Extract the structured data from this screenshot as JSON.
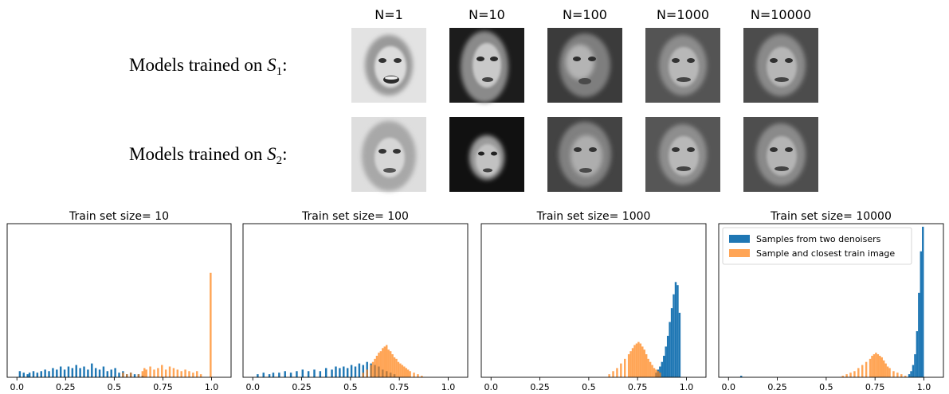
{
  "face_grid": {
    "column_titles": [
      "N=1",
      "N=10",
      "N=100",
      "N=1000",
      "N=10000"
    ],
    "rows": [
      {
        "label_prefix": "Models trained on ",
        "label_var": "S",
        "label_sub": "1",
        "label_suffix": ":"
      },
      {
        "label_prefix": "Models trained on ",
        "label_var": "S",
        "label_sub": "2",
        "label_suffix": ":"
      }
    ]
  },
  "colors": {
    "blue": "#1f77b4",
    "orange": "#ff7f0e"
  },
  "chart_data": [
    {
      "type": "bar",
      "title": "Train set size= 10",
      "xlim": [
        -0.05,
        1.1
      ],
      "xticks": [
        0.0,
        0.25,
        0.5,
        0.75,
        1.0
      ],
      "xtick_labels": [
        "0.0",
        "0.25",
        "0.5",
        "0.75",
        "1.0"
      ],
      "bin_width": 0.01,
      "ylim": [
        0,
        1.0
      ],
      "yticks": [],
      "series": [
        {
          "values": [
            [
              0.01,
              0.04
            ],
            [
              0.03,
              0.03
            ],
            [
              0.05,
              0.02
            ],
            [
              0.06,
              0.03
            ],
            [
              0.08,
              0.04
            ],
            [
              0.1,
              0.03
            ],
            [
              0.12,
              0.04
            ],
            [
              0.14,
              0.05
            ],
            [
              0.16,
              0.04
            ],
            [
              0.18,
              0.06
            ],
            [
              0.2,
              0.05
            ],
            [
              0.22,
              0.07
            ],
            [
              0.24,
              0.05
            ],
            [
              0.26,
              0.07
            ],
            [
              0.28,
              0.06
            ],
            [
              0.3,
              0.08
            ],
            [
              0.32,
              0.06
            ],
            [
              0.34,
              0.07
            ],
            [
              0.36,
              0.05
            ],
            [
              0.38,
              0.09
            ],
            [
              0.4,
              0.06
            ],
            [
              0.42,
              0.05
            ],
            [
              0.44,
              0.07
            ],
            [
              0.46,
              0.04
            ],
            [
              0.48,
              0.05
            ],
            [
              0.5,
              0.06
            ],
            [
              0.52,
              0.03
            ],
            [
              0.54,
              0.04
            ],
            [
              0.56,
              0.02
            ],
            [
              0.58,
              0.03
            ],
            [
              0.6,
              0.02
            ],
            [
              0.62,
              0.02
            ],
            [
              0.64,
              0.01
            ]
          ]
        },
        {
          "values": [
            [
              0.54,
              0.03
            ],
            [
              0.56,
              0.02
            ],
            [
              0.58,
              0.03
            ],
            [
              0.62,
              0.02
            ],
            [
              0.64,
              0.04
            ],
            [
              0.65,
              0.06
            ],
            [
              0.66,
              0.05
            ],
            [
              0.68,
              0.07
            ],
            [
              0.7,
              0.05
            ],
            [
              0.72,
              0.06
            ],
            [
              0.74,
              0.08
            ],
            [
              0.76,
              0.05
            ],
            [
              0.78,
              0.07
            ],
            [
              0.8,
              0.06
            ],
            [
              0.82,
              0.05
            ],
            [
              0.84,
              0.04
            ],
            [
              0.86,
              0.05
            ],
            [
              0.88,
              0.04
            ],
            [
              0.9,
              0.03
            ],
            [
              0.92,
              0.04
            ],
            [
              0.94,
              0.02
            ],
            [
              0.99,
              0.68
            ]
          ]
        }
      ]
    },
    {
      "type": "bar",
      "title": "Train set size= 100",
      "xlim": [
        -0.05,
        1.1
      ],
      "xticks": [
        0.0,
        0.25,
        0.5,
        0.75,
        1.0
      ],
      "xtick_labels": [
        "0.0",
        "0.25",
        "0.5",
        "0.75",
        "1.0"
      ],
      "bin_width": 0.01,
      "ylim": [
        0,
        1.0
      ],
      "yticks": [],
      "series": [
        {
          "values": [
            [
              0.02,
              0.02
            ],
            [
              0.05,
              0.03
            ],
            [
              0.08,
              0.02
            ],
            [
              0.1,
              0.03
            ],
            [
              0.13,
              0.03
            ],
            [
              0.16,
              0.04
            ],
            [
              0.19,
              0.03
            ],
            [
              0.22,
              0.04
            ],
            [
              0.25,
              0.05
            ],
            [
              0.28,
              0.04
            ],
            [
              0.31,
              0.05
            ],
            [
              0.34,
              0.04
            ],
            [
              0.37,
              0.06
            ],
            [
              0.4,
              0.05
            ],
            [
              0.42,
              0.07
            ],
            [
              0.44,
              0.06
            ],
            [
              0.46,
              0.07
            ],
            [
              0.48,
              0.06
            ],
            [
              0.5,
              0.08
            ],
            [
              0.52,
              0.07
            ],
            [
              0.54,
              0.09
            ],
            [
              0.56,
              0.08
            ],
            [
              0.58,
              0.1
            ],
            [
              0.6,
              0.09
            ],
            [
              0.62,
              0.08
            ],
            [
              0.64,
              0.07
            ],
            [
              0.66,
              0.05
            ],
            [
              0.68,
              0.04
            ],
            [
              0.7,
              0.03
            ],
            [
              0.72,
              0.02
            ]
          ]
        },
        {
          "values": [
            [
              0.56,
              0.03
            ],
            [
              0.58,
              0.05
            ],
            [
              0.6,
              0.08
            ],
            [
              0.61,
              0.1
            ],
            [
              0.62,
              0.12
            ],
            [
              0.63,
              0.14
            ],
            [
              0.64,
              0.16
            ],
            [
              0.65,
              0.17
            ],
            [
              0.66,
              0.19
            ],
            [
              0.67,
              0.2
            ],
            [
              0.68,
              0.21
            ],
            [
              0.69,
              0.18
            ],
            [
              0.7,
              0.17
            ],
            [
              0.71,
              0.15
            ],
            [
              0.72,
              0.13
            ],
            [
              0.73,
              0.12
            ],
            [
              0.74,
              0.1
            ],
            [
              0.75,
              0.09
            ],
            [
              0.76,
              0.08
            ],
            [
              0.77,
              0.07
            ],
            [
              0.78,
              0.06
            ],
            [
              0.79,
              0.05
            ],
            [
              0.8,
              0.04
            ],
            [
              0.82,
              0.03
            ],
            [
              0.84,
              0.02
            ],
            [
              0.86,
              0.01
            ]
          ]
        }
      ]
    },
    {
      "type": "bar",
      "title": "Train set size= 1000",
      "xlim": [
        -0.05,
        1.1
      ],
      "xticks": [
        0.0,
        0.25,
        0.5,
        0.75,
        1.0
      ],
      "xtick_labels": [
        "0.0",
        "0.25",
        "0.5",
        "0.75",
        "1.0"
      ],
      "bin_width": 0.01,
      "ylim": [
        0,
        1.0
      ],
      "yticks": [],
      "series": [
        {
          "values": [
            [
              0.84,
              0.03
            ],
            [
              0.85,
              0.05
            ],
            [
              0.86,
              0.07
            ],
            [
              0.87,
              0.1
            ],
            [
              0.88,
              0.14
            ],
            [
              0.89,
              0.2
            ],
            [
              0.9,
              0.27
            ],
            [
              0.91,
              0.36
            ],
            [
              0.92,
              0.45
            ],
            [
              0.93,
              0.54
            ],
            [
              0.94,
              0.62
            ],
            [
              0.95,
              0.6
            ],
            [
              0.96,
              0.42
            ]
          ]
        },
        {
          "values": [
            [
              0.6,
              0.02
            ],
            [
              0.62,
              0.04
            ],
            [
              0.64,
              0.06
            ],
            [
              0.66,
              0.09
            ],
            [
              0.68,
              0.12
            ],
            [
              0.7,
              0.15
            ],
            [
              0.71,
              0.17
            ],
            [
              0.72,
              0.19
            ],
            [
              0.73,
              0.21
            ],
            [
              0.74,
              0.22
            ],
            [
              0.75,
              0.23
            ],
            [
              0.76,
              0.22
            ],
            [
              0.77,
              0.2
            ],
            [
              0.78,
              0.18
            ],
            [
              0.79,
              0.15
            ],
            [
              0.8,
              0.12
            ],
            [
              0.81,
              0.1
            ],
            [
              0.82,
              0.08
            ],
            [
              0.83,
              0.06
            ],
            [
              0.84,
              0.05
            ],
            [
              0.85,
              0.04
            ],
            [
              0.86,
              0.03
            ]
          ]
        }
      ]
    },
    {
      "type": "bar",
      "title": "Train set size= 10000",
      "xlim": [
        -0.05,
        1.1
      ],
      "xticks": [
        0.0,
        0.25,
        0.5,
        0.75,
        1.0
      ],
      "xtick_labels": [
        "0.0",
        "0.25",
        "0.5",
        "0.75",
        "1.0"
      ],
      "bin_width": 0.01,
      "ylim": [
        0,
        1.0
      ],
      "yticks": [],
      "legend": {
        "location": "top-right",
        "entries": [
          "Samples from two denoisers",
          "Sample and closest train image"
        ]
      },
      "series": [
        {
          "name": "Samples from two denoisers",
          "values": [
            [
              0.06,
              0.01
            ],
            [
              0.92,
              0.02
            ],
            [
              0.93,
              0.04
            ],
            [
              0.94,
              0.08
            ],
            [
              0.95,
              0.15
            ],
            [
              0.96,
              0.3
            ],
            [
              0.97,
              0.55
            ],
            [
              0.98,
              0.82
            ],
            [
              0.99,
              0.98
            ]
          ]
        },
        {
          "name": "Sample and closest train image",
          "values": [
            [
              0.58,
              0.01
            ],
            [
              0.6,
              0.02
            ],
            [
              0.62,
              0.03
            ],
            [
              0.64,
              0.04
            ],
            [
              0.66,
              0.06
            ],
            [
              0.68,
              0.08
            ],
            [
              0.7,
              0.1
            ],
            [
              0.72,
              0.12
            ],
            [
              0.73,
              0.14
            ],
            [
              0.74,
              0.15
            ],
            [
              0.75,
              0.16
            ],
            [
              0.76,
              0.15
            ],
            [
              0.77,
              0.14
            ],
            [
              0.78,
              0.13
            ],
            [
              0.79,
              0.11
            ],
            [
              0.8,
              0.09
            ],
            [
              0.81,
              0.07
            ],
            [
              0.82,
              0.06
            ],
            [
              0.84,
              0.04
            ],
            [
              0.86,
              0.03
            ],
            [
              0.88,
              0.02
            ],
            [
              0.9,
              0.01
            ]
          ]
        }
      ]
    }
  ]
}
